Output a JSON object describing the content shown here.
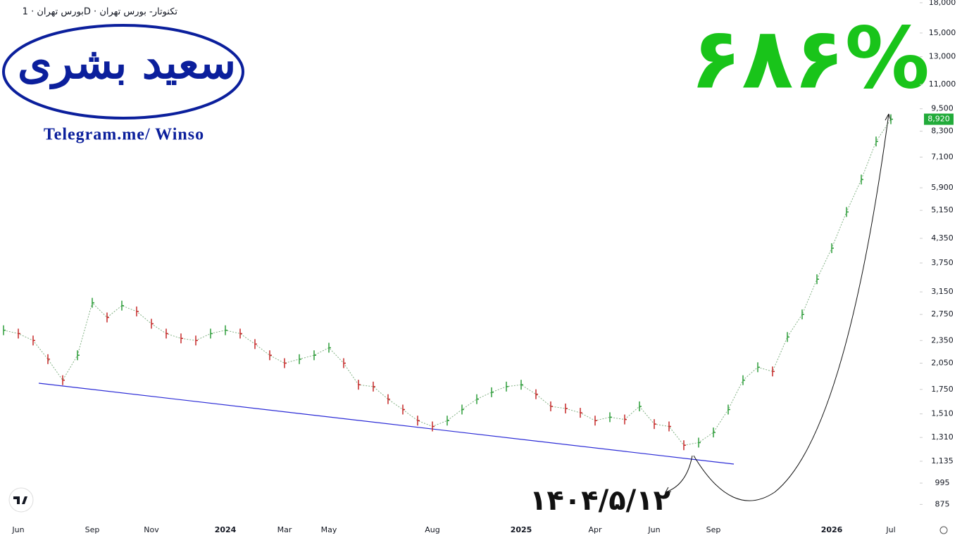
{
  "header": "بورس تهران · 1D · تکنوتار- بورس تهران",
  "logo": {
    "name": "سعید بشری",
    "link": "Telegram.me/ Winso"
  },
  "chart_data": {
    "type": "line",
    "categories": [
      null,
      "Jun",
      null,
      null,
      null,
      null,
      "Sep",
      null,
      null,
      null,
      "Nov",
      null,
      null,
      null,
      null,
      "2024",
      null,
      null,
      null,
      "Mar",
      null,
      null,
      "May",
      null,
      null,
      null,
      null,
      null,
      null,
      "Aug",
      null,
      null,
      null,
      null,
      null,
      "2025",
      null,
      null,
      null,
      null,
      "Apr",
      null,
      null,
      null,
      "Jun",
      null,
      null,
      null,
      "Sep",
      null,
      null,
      null,
      null,
      null,
      null,
      null,
      "2026",
      null,
      null,
      null,
      "Jul"
    ],
    "series": [
      {
        "color": "#2e7d32",
        "values": [
          2500,
          2450,
          2350,
          2100,
          1850,
          2150,
          2950,
          2700,
          2900,
          2800,
          2600,
          2450,
          2380,
          2350,
          2450,
          2500,
          2450,
          2300,
          2150,
          2050,
          2100,
          2150,
          2250,
          2050,
          1800,
          1780,
          1650,
          1550,
          1450,
          1400,
          1450,
          1550,
          1650,
          1720,
          1780,
          1800,
          1700,
          1580,
          1560,
          1520,
          1450,
          1480,
          1460,
          1580,
          1420,
          1400,
          1250,
          1270,
          1350,
          1550,
          1850,
          2000,
          1950,
          2400,
          2750,
          3400,
          4100,
          5100,
          6200,
          7800,
          8920
        ]
      }
    ],
    "up_color": "#2e9e3a",
    "down_color": "#c62828",
    "log_scale": true,
    "ylim": [
      795,
      18300
    ],
    "yticks": [
      {
        "value": 18000,
        "label": "18,000"
      },
      {
        "value": 15000,
        "label": "15,000"
      },
      {
        "value": 13000,
        "label": "13,000"
      },
      {
        "value": 11000,
        "label": "11,000"
      },
      {
        "value": 9500,
        "label": "9,500"
      },
      {
        "value": 8300,
        "label": "8,300"
      },
      {
        "value": 7100,
        "label": "7,100"
      },
      {
        "value": 5900,
        "label": "5,900"
      },
      {
        "value": 5150,
        "label": "5,150"
      },
      {
        "value": 4350,
        "label": "4,350"
      },
      {
        "value": 3750,
        "label": "3,750"
      },
      {
        "value": 3150,
        "label": "3,150"
      },
      {
        "value": 2750,
        "label": "2,750"
      },
      {
        "value": 2350,
        "label": "2,350"
      },
      {
        "value": 2050,
        "label": "2,050"
      },
      {
        "value": 1750,
        "label": "1,750"
      },
      {
        "value": 1510,
        "label": "1,510"
      },
      {
        "value": 1310,
        "label": "1,310"
      },
      {
        "value": 1135,
        "label": "1,135"
      },
      995,
      875
    ],
    "last_price": {
      "value": 8920,
      "label": "8,920",
      "color": "#22ab3a"
    },
    "annotations": {
      "gain": "۶۸۶%",
      "date": "۱۴۰۴/۵/۱۲"
    }
  }
}
